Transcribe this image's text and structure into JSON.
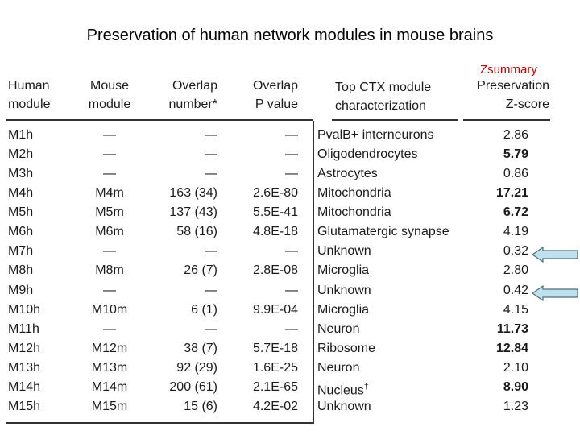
{
  "title": "Preservation of human network modules in mouse brains",
  "zsummary_label": "Zsummary",
  "headers": {
    "human_module": [
      "Human",
      "module"
    ],
    "mouse_module": [
      "Mouse",
      "module"
    ],
    "overlap_number": [
      "Overlap",
      "number*"
    ],
    "overlap_p": [
      "Overlap",
      "P value"
    ],
    "top_ctx": [
      "Top CTX module",
      "characterization"
    ],
    "preservation": [
      "Preservation",
      "Z-score"
    ]
  },
  "rows": [
    {
      "human": "M1h",
      "mouse": "—",
      "overlap": "—",
      "p": "—",
      "ctx": "PvalB+ interneurons",
      "z": "2.86",
      "z_bold": false
    },
    {
      "human": "M2h",
      "mouse": "—",
      "overlap": "—",
      "p": "—",
      "ctx": "Oligodendrocytes",
      "z": "5.79",
      "z_bold": true
    },
    {
      "human": "M3h",
      "mouse": "—",
      "overlap": "—",
      "p": "—",
      "ctx": "Astrocytes",
      "z": "0.86",
      "z_bold": false
    },
    {
      "human": "M4h",
      "mouse": "M4m",
      "overlap": "163 (34)",
      "p": "2.6E-80",
      "ctx": "Mitochondria",
      "z": "17.21",
      "z_bold": true
    },
    {
      "human": "M5h",
      "mouse": "M5m",
      "overlap": "137 (43)",
      "p": "5.5E-41",
      "ctx": "Mitochondria",
      "z": "6.72",
      "z_bold": true
    },
    {
      "human": "M6h",
      "mouse": "M6m",
      "overlap": "58 (16)",
      "p": "4.8E-18",
      "ctx": "Glutamatergic synapse",
      "z": "4.19",
      "z_bold": false
    },
    {
      "human": "M7h",
      "mouse": "—",
      "overlap": "—",
      "p": "—",
      "ctx": "Unknown",
      "z": "0.32",
      "z_bold": false
    },
    {
      "human": "M8h",
      "mouse": "M8m",
      "overlap": "26 (7)",
      "p": "2.8E-08",
      "ctx": "Microglia",
      "z": "2.80",
      "z_bold": false
    },
    {
      "human": "M9h",
      "mouse": "—",
      "overlap": "—",
      "p": "—",
      "ctx": "Unknown",
      "z": "0.42",
      "z_bold": false
    },
    {
      "human": "M10h",
      "mouse": "M10m",
      "overlap": "6 (1)",
      "p": "9.9E-04",
      "ctx": "Microglia",
      "z": "4.15",
      "z_bold": false
    },
    {
      "human": "M11h",
      "mouse": "—",
      "overlap": "—",
      "p": "—",
      "ctx": "Neuron",
      "z": "11.73",
      "z_bold": true
    },
    {
      "human": "M12h",
      "mouse": "M12m",
      "overlap": "38 (7)",
      "p": "5.7E-18",
      "ctx": "Ribosome",
      "z": "12.84",
      "z_bold": true
    },
    {
      "human": "M13h",
      "mouse": "M13m",
      "overlap": "92 (29)",
      "p": "1.6E-25",
      "ctx": "Neuron",
      "z": "2.10",
      "z_bold": false
    },
    {
      "human": "M14h",
      "mouse": "M14m",
      "overlap": "200 (61)",
      "p": "2.1E-65",
      "ctx": "Nucleus",
      "ctx_sup": "†",
      "z": "8.90",
      "z_bold": true
    },
    {
      "human": "M15h",
      "mouse": "M15m",
      "overlap": "15 (6)",
      "p": "4.2E-02",
      "ctx": "Unknown",
      "z": "1.23",
      "z_bold": false
    }
  ],
  "arrow_color": "#bfe0ec",
  "arrow_stroke": "#4a6f7e"
}
